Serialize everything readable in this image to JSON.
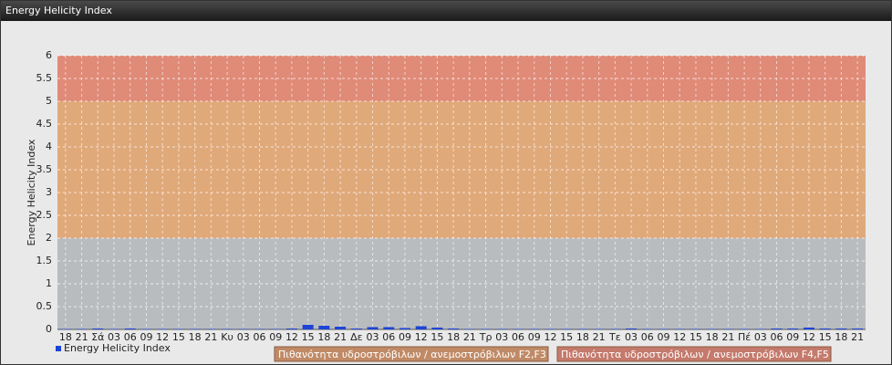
{
  "chart_data": {
    "type": "bar",
    "title": "Energy Helicity Index",
    "y_label": "Energy Helicity Index",
    "categories": [
      "18",
      "21",
      "Σά",
      "03",
      "06",
      "09",
      "12",
      "15",
      "18",
      "21",
      "Κυ",
      "03",
      "06",
      "09",
      "12",
      "15",
      "18",
      "21",
      "Δε",
      "03",
      "06",
      "09",
      "12",
      "15",
      "18",
      "21",
      "Τρ",
      "03",
      "06",
      "09",
      "12",
      "15",
      "18",
      "21",
      "Τε",
      "03",
      "06",
      "09",
      "12",
      "15",
      "18",
      "21",
      "Πέ",
      "03",
      "06",
      "09",
      "12",
      "15",
      "18",
      "21"
    ],
    "series": [
      {
        "name": "Energy Helicity Index",
        "color": "#1c44d8",
        "values": [
          0.01,
          0.01,
          0.02,
          0.01,
          0.02,
          0.01,
          0.01,
          0.01,
          0.01,
          0.01,
          0.01,
          0.01,
          0.01,
          0.01,
          0.02,
          0.1,
          0.08,
          0.06,
          0.02,
          0.05,
          0.05,
          0.03,
          0.07,
          0.04,
          0.02,
          0.01,
          0.01,
          0.01,
          0.01,
          0.01,
          0.01,
          0.01,
          0.01,
          0.01,
          0.01,
          0.02,
          0.01,
          0.01,
          0.01,
          0.01,
          0.01,
          0.01,
          0.01,
          0.01,
          0.02,
          0.02,
          0.04,
          0.02,
          0.02,
          0.02
        ]
      }
    ],
    "ylim": [
      0,
      6
    ],
    "yticks": [
      0,
      0.5,
      1,
      1.5,
      2,
      2.5,
      3,
      3.5,
      4,
      4.5,
      5,
      5.5,
      6
    ],
    "grid": true,
    "bands": [
      {
        "from": 0,
        "to": 2,
        "color": "#b9bcbf"
      },
      {
        "from": 2,
        "to": 5,
        "color": "#e0a97a",
        "label": "Πιθανότητα υδροστρόβιλων / ανεμοστρόβιλων F2,F3",
        "legend_color": "#c08a66"
      },
      {
        "from": 5,
        "to": 6,
        "color": "#e08a78",
        "label": "Πιθανότητα υδροστρόβιλων / ανεμοστρόβιλων F4,F5",
        "legend_color": "#c47a6c"
      }
    ]
  }
}
